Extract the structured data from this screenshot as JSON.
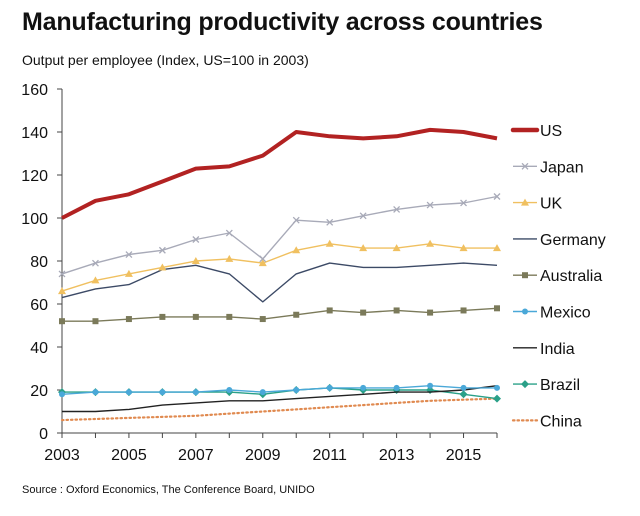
{
  "header": {
    "title": "Manufacturing productivity across countries",
    "subtitle": "Output per employee (Index, US=100 in 2003)"
  },
  "footer": {
    "source": "Source : Oxford Economics, The Conference Board, UNIDO"
  },
  "chart_data": {
    "type": "line",
    "title": "Manufacturing productivity across countries",
    "ylabel": "Output per employee (Index, US=100 in 2003)",
    "xlabel": "",
    "x": [
      2003,
      2004,
      2005,
      2006,
      2007,
      2008,
      2009,
      2010,
      2011,
      2012,
      2013,
      2014,
      2015,
      2016
    ],
    "xticks": [
      "2003",
      "2005",
      "2007",
      "2009",
      "2011",
      "2013",
      "2015"
    ],
    "yticks": [
      "0",
      "20",
      "40",
      "60",
      "80",
      "100",
      "120",
      "140",
      "160"
    ],
    "xlim": [
      2003,
      2016
    ],
    "ylim": [
      0,
      160
    ],
    "grid": false,
    "legend_position": "right",
    "series": [
      {
        "name": "US",
        "color": "#b22222",
        "marker": "none",
        "style": "thick",
        "values": [
          100,
          108,
          111,
          117,
          123,
          124,
          129,
          140,
          138,
          137,
          138,
          141,
          140,
          137
        ]
      },
      {
        "name": "Japan",
        "color": "#a8aab8",
        "marker": "x",
        "style": "solid",
        "values": [
          74,
          79,
          83,
          85,
          90,
          93,
          81,
          99,
          98,
          101,
          104,
          106,
          107,
          110
        ]
      },
      {
        "name": "UK",
        "color": "#f0c060",
        "marker": "triangle",
        "style": "solid",
        "values": [
          66,
          71,
          74,
          77,
          80,
          81,
          79,
          85,
          88,
          86,
          86,
          88,
          86,
          86
        ]
      },
      {
        "name": "Germany",
        "color": "#3c4a66",
        "marker": "none",
        "style": "solid",
        "values": [
          63,
          67,
          69,
          76,
          78,
          74,
          61,
          74,
          79,
          77,
          77,
          78,
          79,
          78
        ]
      },
      {
        "name": "Australia",
        "color": "#7b7a5a",
        "marker": "square",
        "style": "solid",
        "values": [
          52,
          52,
          53,
          54,
          54,
          54,
          53,
          55,
          57,
          56,
          57,
          56,
          57,
          58
        ]
      },
      {
        "name": "Mexico",
        "color": "#4aa8d8",
        "marker": "circle",
        "style": "solid",
        "values": [
          18,
          19,
          19,
          19,
          19,
          20,
          19,
          20,
          21,
          21,
          21,
          22,
          21,
          21
        ]
      },
      {
        "name": "India",
        "color": "#222222",
        "marker": "none",
        "style": "solid",
        "values": [
          10,
          10,
          11,
          13,
          14,
          15,
          15,
          16,
          17,
          18,
          19,
          19,
          20,
          22
        ]
      },
      {
        "name": "Brazil",
        "color": "#2aa088",
        "marker": "diamond",
        "style": "solid",
        "values": [
          19,
          19,
          19,
          19,
          19,
          19,
          18,
          20,
          21,
          20,
          20,
          20,
          18,
          16
        ]
      },
      {
        "name": "China",
        "color": "#e08a50",
        "marker": "none",
        "style": "dotted",
        "values": [
          6,
          6.5,
          7,
          7.5,
          8,
          9,
          10,
          11,
          12,
          13,
          14,
          15,
          15.5,
          16
        ]
      }
    ]
  }
}
